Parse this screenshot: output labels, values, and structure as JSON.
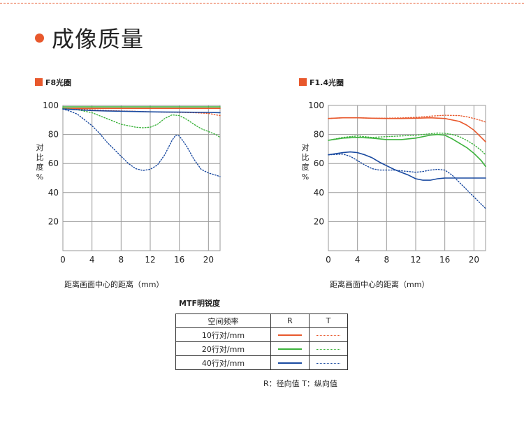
{
  "page": {
    "title": "成像质量"
  },
  "colors": {
    "accent": "#e8582c",
    "freq10": "#e8582c",
    "freq20": "#3cb33c",
    "freq40": "#1a4aa0",
    "grid": "#9a9a9a"
  },
  "chart_data": [
    {
      "type": "line",
      "title": "F8光圈",
      "xlabel": "距离画面中心的距离（mm）",
      "ylabel": "对比度%",
      "xlim": [
        0,
        21.6
      ],
      "ylim": [
        0,
        100
      ],
      "xticks": [
        "0",
        "4",
        "8",
        "12",
        "16",
        "20"
      ],
      "yticks": [
        "20",
        "40",
        "60",
        "80",
        "100"
      ],
      "grid": true,
      "series": [
        {
          "name": "10行对/mm R",
          "color": "#e8582c",
          "dash": false,
          "x": [
            0,
            4,
            8,
            12,
            16,
            20,
            21.6
          ],
          "y": [
            98,
            98,
            98,
            98,
            98,
            98,
            98
          ]
        },
        {
          "name": "10行对/mm T",
          "color": "#e8582c",
          "dash": true,
          "x": [
            0,
            2,
            4,
            6,
            8,
            10,
            12,
            14,
            16,
            18,
            20,
            21.6
          ],
          "y": [
            98,
            97.5,
            97,
            96.6,
            96.2,
            95.9,
            95.6,
            95.4,
            95.2,
            95,
            94.5,
            93
          ]
        },
        {
          "name": "20行对/mm R",
          "color": "#3cb33c",
          "dash": false,
          "x": [
            0,
            4,
            8,
            12,
            16,
            20,
            21.6
          ],
          "y": [
            99,
            99,
            99,
            99,
            99,
            99,
            99
          ]
        },
        {
          "name": "20行对/mm T",
          "color": "#3cb33c",
          "dash": true,
          "x": [
            0,
            2,
            4,
            6,
            8,
            10,
            11,
            12,
            13,
            14,
            15,
            16,
            17,
            18,
            19,
            20,
            21,
            21.6
          ],
          "y": [
            98,
            97,
            95,
            91,
            87,
            85,
            84.6,
            85,
            87,
            91,
            93.5,
            93,
            90.5,
            87,
            84,
            82,
            80,
            78
          ]
        },
        {
          "name": "40行对/mm R",
          "color": "#1a4aa0",
          "dash": false,
          "x": [
            0,
            2,
            4,
            6,
            8,
            10,
            12,
            14,
            16,
            18,
            20,
            21.6
          ],
          "y": [
            97.5,
            97,
            96.5,
            96.2,
            96,
            95.8,
            95.6,
            95.5,
            95.4,
            95.3,
            95.2,
            95
          ]
        },
        {
          "name": "40行对/mm T",
          "color": "#1a4aa0",
          "dash": true,
          "x": [
            0,
            1,
            2,
            3,
            4,
            5,
            6,
            7,
            8,
            9,
            10,
            11,
            12,
            13,
            14,
            15,
            15.5,
            16,
            17,
            18,
            19,
            20,
            21,
            21.6
          ],
          "y": [
            97.5,
            96,
            94,
            90,
            86,
            81,
            75,
            70,
            65,
            60,
            56.5,
            55.2,
            56,
            59,
            66,
            76,
            79.5,
            79,
            72,
            63,
            56,
            53.5,
            52,
            51
          ]
        }
      ]
    },
    {
      "type": "line",
      "title": "F1.4光圈",
      "xlabel": "距离画面中心的距离（mm）",
      "ylabel": "对比度%",
      "xlim": [
        0,
        21.6
      ],
      "ylim": [
        0,
        100
      ],
      "xticks": [
        "0",
        "4",
        "8",
        "12",
        "16",
        "20"
      ],
      "yticks": [
        "20",
        "40",
        "60",
        "80",
        "100"
      ],
      "grid": true,
      "series": [
        {
          "name": "10行对/mm R",
          "color": "#e8582c",
          "dash": false,
          "x": [
            0,
            2,
            4,
            6,
            8,
            10,
            12,
            14,
            16,
            18,
            19,
            20,
            21,
            21.6
          ],
          "y": [
            91,
            91.5,
            91.5,
            91.2,
            91,
            91,
            91.2,
            91.5,
            91,
            89,
            86.5,
            83,
            78,
            75
          ]
        },
        {
          "name": "10行对/mm T",
          "color": "#e8582c",
          "dash": true,
          "x": [
            0,
            2,
            4,
            6,
            8,
            10,
            12,
            14,
            16,
            18,
            19,
            20,
            21,
            21.6
          ],
          "y": [
            91,
            91.5,
            91.5,
            91.2,
            91.2,
            91.4,
            91.8,
            92.6,
            93.2,
            93,
            92.2,
            91,
            89.6,
            88.5
          ]
        },
        {
          "name": "20行对/mm R",
          "color": "#3cb33c",
          "dash": false,
          "x": [
            0,
            2,
            4,
            6,
            8,
            10,
            12,
            14,
            15,
            16,
            17,
            18,
            19,
            20,
            21,
            21.6
          ],
          "y": [
            76,
            77.5,
            78,
            77.5,
            76.5,
            76.5,
            77.5,
            79.5,
            80,
            79.5,
            77,
            74,
            71,
            67,
            62,
            58
          ]
        },
        {
          "name": "20行对/mm T",
          "color": "#3cb33c",
          "dash": true,
          "x": [
            0,
            2,
            4,
            6,
            8,
            10,
            12,
            14,
            15,
            16,
            17,
            18,
            19,
            20,
            21,
            21.6
          ],
          "y": [
            76,
            78,
            79,
            78,
            78.5,
            79,
            79.5,
            80.5,
            81,
            80.8,
            80,
            78.5,
            76,
            73,
            69,
            66
          ]
        },
        {
          "name": "40行对/mm R",
          "color": "#1a4aa0",
          "dash": false,
          "x": [
            0,
            2,
            3,
            4,
            5,
            6,
            7,
            8,
            9,
            10,
            11,
            12,
            13,
            14,
            15,
            16,
            18,
            20,
            21.6
          ],
          "y": [
            66,
            67.5,
            68,
            67.5,
            66,
            64,
            61,
            58.5,
            56,
            54,
            52,
            49.5,
            48.5,
            48.5,
            49.5,
            50,
            50,
            50,
            50
          ]
        },
        {
          "name": "40行对/mm T",
          "color": "#1a4aa0",
          "dash": true,
          "x": [
            0,
            2,
            3,
            4,
            5,
            6,
            7,
            8,
            9,
            10,
            11,
            12,
            13,
            14,
            15,
            16,
            17,
            18,
            19,
            20,
            21,
            21.6
          ],
          "y": [
            66,
            66.5,
            65,
            62,
            59,
            56.5,
            55.5,
            55.5,
            55.5,
            55,
            54.5,
            54,
            54.5,
            55.5,
            56,
            55.5,
            52,
            47,
            42,
            37,
            32,
            29
          ]
        }
      ]
    }
  ],
  "legend": {
    "title": "MTF明锐度",
    "header": {
      "freq": "空间频率",
      "r": "R",
      "t": "T"
    },
    "rows": [
      {
        "label": "10行对/mm",
        "color": "#e8582c"
      },
      {
        "label": "20行对/mm",
        "color": "#3cb33c"
      },
      {
        "label": "40行对/mm",
        "color": "#1a4aa0"
      }
    ],
    "note": "R：径向值   T：纵向值"
  }
}
